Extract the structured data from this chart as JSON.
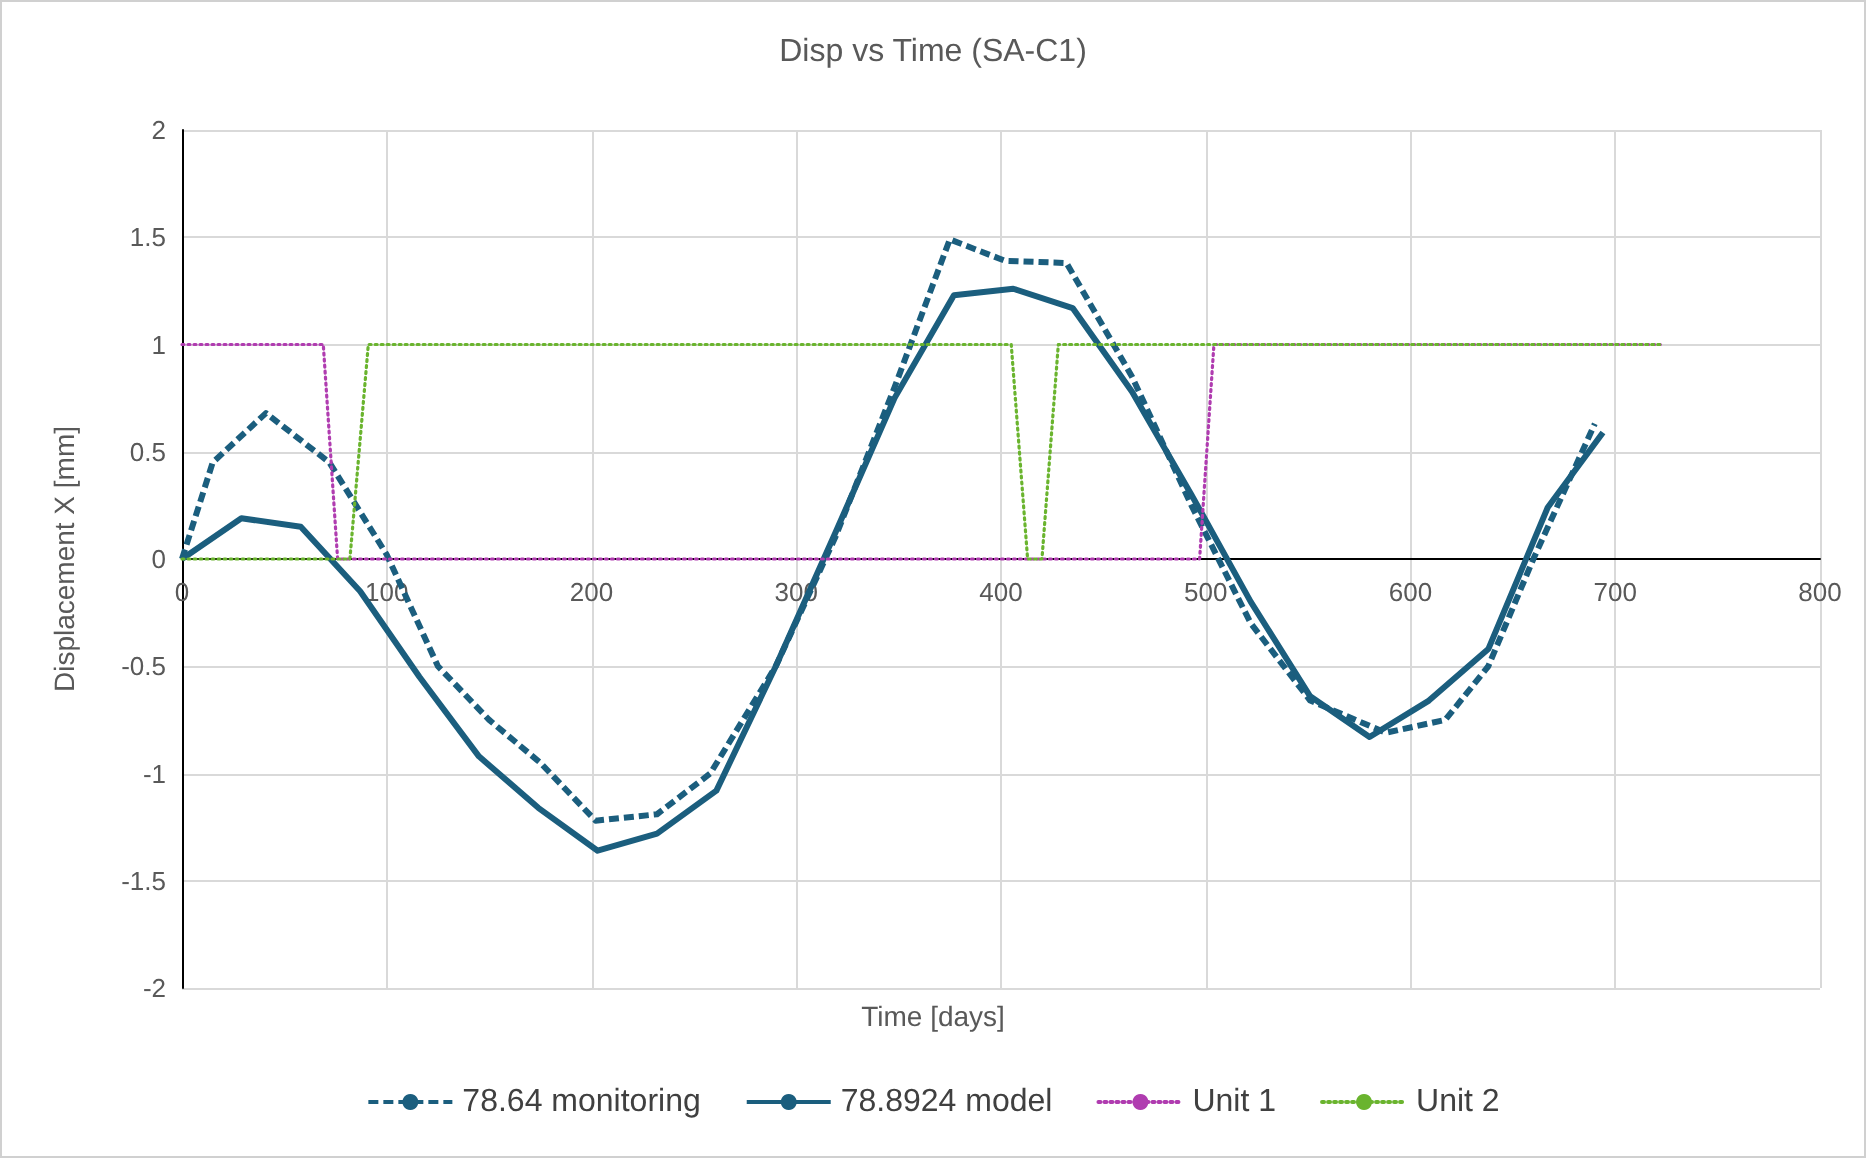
{
  "chart_data": {
    "type": "line",
    "title": "Disp vs Time (SA-C1)",
    "xlabel": "Time [days]",
    "ylabel": "Displacement X [mm]",
    "xlim": [
      0,
      800
    ],
    "xticks": [
      0,
      100,
      200,
      300,
      400,
      500,
      600,
      700,
      800
    ],
    "ylim": [
      -2,
      2
    ],
    "yticks": [
      -2,
      -1.5,
      -1,
      -0.5,
      0,
      0.5,
      1,
      1.5,
      2
    ],
    "grid": true,
    "legend": "bottom",
    "marker": "none",
    "series": [
      {
        "name": "78.64 monitoring",
        "color": "#1b5e7e",
        "line_style": "dashed",
        "x": [
          0,
          15,
          41,
          72,
          100,
          125,
          150,
          175,
          202,
          232,
          258,
          290,
          319,
          348,
          375,
          402,
          432,
          464,
          493,
          522,
          551,
          588,
          617,
          638,
          660,
          690
        ],
        "values": [
          0,
          0.45,
          0.68,
          0.45,
          0.02,
          -0.5,
          -0.75,
          -0.95,
          -1.22,
          -1.19,
          -1,
          -0.5,
          0.1,
          0.8,
          1.49,
          1.39,
          1.38,
          0.85,
          0.25,
          -0.3,
          -0.66,
          -0.81,
          -0.75,
          -0.5,
          0,
          0.63
        ]
      },
      {
        "name": "78.8924 model",
        "color": "#1b5e7e",
        "line_style": "solid",
        "x": [
          0,
          29,
          58,
          87,
          116,
          145,
          174,
          203,
          232,
          261,
          290,
          319,
          348,
          377,
          406,
          435,
          464,
          493,
          522,
          551,
          580,
          609,
          638,
          667,
          694
        ],
        "values": [
          0,
          0.19,
          0.15,
          -0.15,
          -0.55,
          -0.92,
          -1.16,
          -1.36,
          -1.28,
          -1.08,
          -0.5,
          0.12,
          0.75,
          1.23,
          1.26,
          1.17,
          0.78,
          0.3,
          -0.2,
          -0.64,
          -0.83,
          -0.66,
          -0.42,
          0.24,
          0.59
        ]
      },
      {
        "name": "Unit 1",
        "color": "#b03cb0",
        "line_style": "dotted",
        "x": [
          0,
          69,
          76,
          497,
          504,
          722
        ],
        "values": [
          1,
          1,
          0,
          0,
          1,
          1
        ]
      },
      {
        "name": "Unit 2",
        "color": "#6ab42e",
        "line_style": "dotted",
        "x": [
          0,
          82,
          91,
          405,
          413,
          420,
          428,
          722
        ],
        "values": [
          0,
          0,
          1,
          1,
          0,
          0,
          1,
          1
        ]
      }
    ]
  }
}
